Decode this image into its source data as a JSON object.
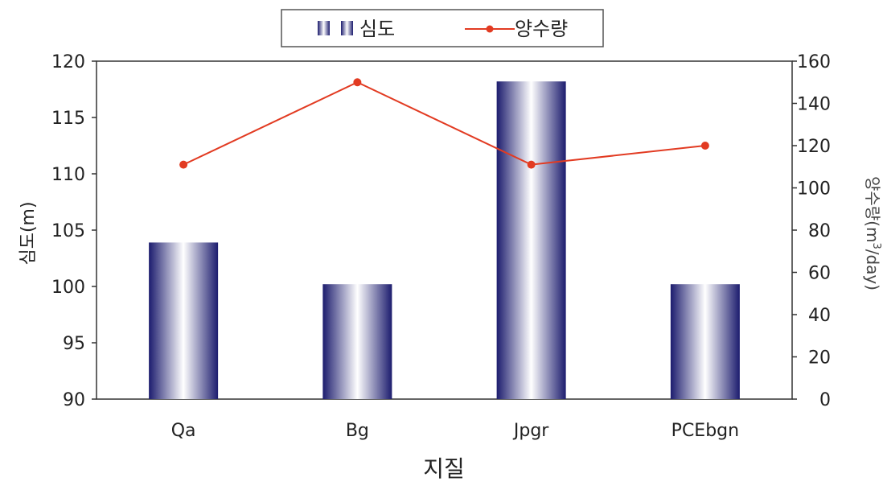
{
  "chart_data": {
    "type": "bar+line",
    "categories": [
      "Qa",
      "Bg",
      "Jpgr",
      "PCEbgn"
    ],
    "series": [
      {
        "name": "심도",
        "type": "bar",
        "axis": "left",
        "values": [
          103.9,
          100.2,
          118.2,
          100.2
        ]
      },
      {
        "name": "양수량",
        "type": "line",
        "axis": "right",
        "values": [
          111,
          150,
          111,
          120
        ]
      }
    ],
    "xlabel": "지질",
    "ylabel": "심도(m)",
    "y2label_prefix": "양수량(m",
    "y2label_sup": "3",
    "y2label_suffix": "/day)",
    "ylim": [
      90,
      120
    ],
    "y_ticks": [
      90,
      95,
      100,
      105,
      110,
      115,
      120
    ],
    "y2lim": [
      0,
      160
    ],
    "y2_ticks": [
      0,
      20,
      40,
      60,
      80,
      100,
      120,
      140,
      160
    ],
    "grid": false,
    "legend_position": "top-center",
    "colors": {
      "bar_dark": "#1c1c6e",
      "bar_light": "#ffffff",
      "line": "#e23b22",
      "axis": "#333333"
    }
  }
}
